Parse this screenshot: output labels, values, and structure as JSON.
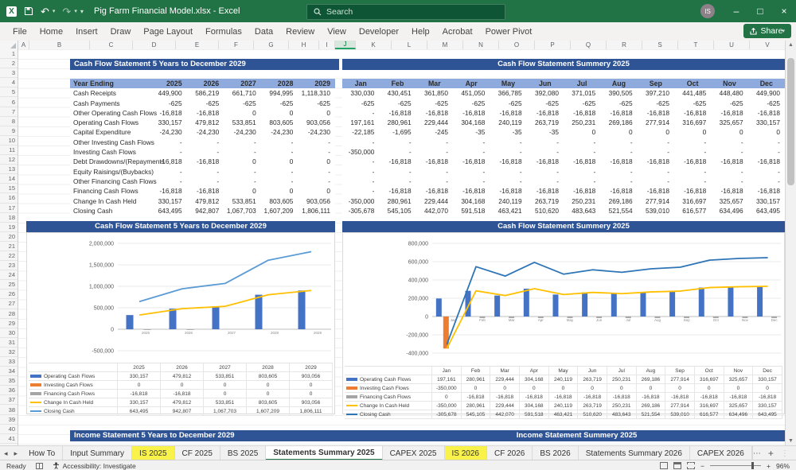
{
  "titlebar": {
    "title": "Pig Farm Financial Model.xlsx  -  Excel",
    "search_placeholder": "Search",
    "avatar_initials": "IS",
    "window_buttons": [
      "minimize",
      "restore",
      "close"
    ]
  },
  "ribbon": {
    "tabs": [
      "File",
      "Home",
      "Insert",
      "Draw",
      "Page Layout",
      "Formulas",
      "Data",
      "Review",
      "View",
      "Developer",
      "Help",
      "Acrobat",
      "Power Pivot"
    ],
    "share_label": "Share"
  },
  "sheet": {
    "col_letters": [
      "A",
      "B",
      "C",
      "D",
      "E",
      "F",
      "G",
      "H",
      "I",
      "J",
      "K",
      "L",
      "M",
      "N",
      "O",
      "P",
      "Q",
      "R",
      "S",
      "T",
      "U",
      "V"
    ],
    "selected_col": "J",
    "row_count": 41,
    "tables": {
      "annual": {
        "title": "Cash Flow Statement 5 Years to December 2029",
        "header": [
          "Year Ending",
          "2025",
          "2026",
          "2027",
          "2028",
          "2029"
        ],
        "rows": [
          [
            "Cash Receipts",
            "449,900",
            "586,219",
            "661,710",
            "994,995",
            "1,118,310"
          ],
          [
            "Cash Payments",
            "-625",
            "-625",
            "-625",
            "-625",
            "-625"
          ],
          [
            "Other Operating Cash Flows",
            "-16,818",
            "-16,818",
            "0",
            "0",
            "0"
          ],
          [
            "Operating Cash Flows",
            "330,157",
            "479,812",
            "533,851",
            "803,605",
            "903,056"
          ],
          [
            "Capital Expenditure",
            "-24,230",
            "-24,230",
            "-24,230",
            "-24,230",
            "-24,230"
          ],
          [
            "Other Investing Cash Flows",
            "-",
            "-",
            "-",
            "-",
            "-"
          ],
          [
            "Investing Cash Flows",
            "-",
            "-",
            "-",
            "-",
            "-"
          ],
          [
            "Debt Drawdowns/(Repayments",
            "-16,818",
            "-16,818",
            "0",
            "0",
            "0"
          ],
          [
            "Equity Raisings/(Buybacks)",
            "-",
            "-",
            "-",
            "-",
            "-"
          ],
          [
            "Other Financing Cash Flows",
            "-",
            "-",
            "-",
            "-",
            "-"
          ],
          [
            "Financing Cash Flows",
            "-16,818",
            "-16,818",
            "0",
            "0",
            "0"
          ],
          [
            "Change In Cash Held",
            "330,157",
            "479,812",
            "533,851",
            "803,605",
            "903,056"
          ],
          [
            "Closing Cash",
            "643,495",
            "942,807",
            "1,067,703",
            "1,607,209",
            "1,806,111"
          ]
        ]
      },
      "monthly": {
        "title": "Cash Flow Statement Summery 2025",
        "header": [
          "Jan",
          "Feb",
          "Mar",
          "Apr",
          "May",
          "Jun",
          "Jul",
          "Aug",
          "Sep",
          "Oct",
          "Nov",
          "Dec"
        ],
        "rows": [
          [
            "330,030",
            "430,451",
            "361,850",
            "451,050",
            "366,785",
            "392,080",
            "371,015",
            "390,505",
            "397,210",
            "441,485",
            "448,480",
            "449,900"
          ],
          [
            "-625",
            "-625",
            "-625",
            "-625",
            "-625",
            "-625",
            "-625",
            "-625",
            "-625",
            "-625",
            "-625",
            "-625"
          ],
          [
            "-",
            "-16,818",
            "-16,818",
            "-16,818",
            "-16,818",
            "-16,818",
            "-16,818",
            "-16,818",
            "-16,818",
            "-16,818",
            "-16,818",
            "-16,818"
          ],
          [
            "197,161",
            "280,961",
            "229,444",
            "304,168",
            "240,119",
            "263,719",
            "250,231",
            "269,186",
            "277,914",
            "316,697",
            "325,657",
            "330,157"
          ],
          [
            "-22,185",
            "-1,695",
            "-245",
            "-35",
            "-35",
            "-35",
            "0",
            "0",
            "0",
            "0",
            "0",
            "0"
          ],
          [
            "-",
            "-",
            "-",
            "-",
            "-",
            "-",
            "-",
            "-",
            "-",
            "-",
            "-",
            "-"
          ],
          [
            "-350,000",
            "-",
            "-",
            "-",
            "-",
            "-",
            "-",
            "-",
            "-",
            "-",
            "-",
            "-"
          ],
          [
            "-",
            "-16,818",
            "-16,818",
            "-16,818",
            "-16,818",
            "-16,818",
            "-16,818",
            "-16,818",
            "-16,818",
            "-16,818",
            "-16,818",
            "-16,818"
          ],
          [
            "-",
            "-",
            "-",
            "-",
            "-",
            "-",
            "-",
            "-",
            "-",
            "-",
            "-",
            "-"
          ],
          [
            "-",
            "-",
            "-",
            "-",
            "-",
            "-",
            "-",
            "-",
            "-",
            "-",
            "-",
            "-"
          ],
          [
            "-",
            "-16,818",
            "-16,818",
            "-16,818",
            "-16,818",
            "-16,818",
            "-16,818",
            "-16,818",
            "-16,818",
            "-16,818",
            "-16,818",
            "-16,818"
          ],
          [
            "-350,000",
            "280,961",
            "229,444",
            "304,168",
            "240,119",
            "263,719",
            "250,231",
            "269,186",
            "277,914",
            "316,697",
            "325,657",
            "330,157"
          ],
          [
            "-305,678",
            "545,105",
            "442,070",
            "591,518",
            "463,421",
            "510,620",
            "483,643",
            "521,554",
            "539,010",
            "616,577",
            "634,496",
            "643,495"
          ]
        ]
      }
    },
    "bottom_bands": {
      "left": "Income Statement 5 Years to December 2029",
      "right": "Income Statement Summery 2025"
    }
  },
  "chart_data": [
    {
      "type": "bar",
      "title": "Cash Flow Statement 5 Years to December 2029",
      "categories": [
        "2025",
        "2026",
        "2027",
        "2028",
        "2029"
      ],
      "ylim": [
        -500000,
        2000000
      ],
      "tick_step": 500000,
      "grid": true,
      "legend_position": "data-table-below",
      "series": [
        {
          "name": "Operating Cash Flows",
          "kind": "bar",
          "color": "#4472C4",
          "values": [
            330157,
            479812,
            533851,
            803605,
            903056
          ]
        },
        {
          "name": "Investing Cash Flows",
          "kind": "bar",
          "color": "#ED7D31",
          "values": [
            0,
            0,
            0,
            0,
            0
          ]
        },
        {
          "name": "Financing Cash Flows",
          "kind": "bar",
          "color": "#A5A5A5",
          "values": [
            -16818,
            -16818,
            0,
            0,
            0
          ]
        },
        {
          "name": "Change In Cash Held",
          "kind": "line",
          "color": "#FFC000",
          "values": [
            330157,
            479812,
            533851,
            803605,
            903056
          ]
        },
        {
          "name": "Closing Cash",
          "kind": "line",
          "color": "#5B9BD5",
          "values": [
            643495,
            942807,
            1067703,
            1607209,
            1806111
          ]
        }
      ]
    },
    {
      "type": "bar",
      "title": "Cash Flow Statement Summery 2025",
      "categories": [
        "Jan",
        "Feb",
        "Mar",
        "Apr",
        "May",
        "Jun",
        "Jul",
        "Aug",
        "Sep",
        "Oct",
        "Nov",
        "Dec"
      ],
      "ylim": [
        -400000,
        800000
      ],
      "tick_step": 200000,
      "grid": true,
      "legend_position": "data-table-below",
      "series": [
        {
          "name": "Operating Cash Flows",
          "kind": "bar",
          "color": "#4472C4",
          "values": [
            197161,
            280961,
            229444,
            304168,
            240119,
            263719,
            250231,
            269186,
            277914,
            316697,
            325657,
            330157
          ]
        },
        {
          "name": "Investing Cash Flows",
          "kind": "bar",
          "color": "#ED7D31",
          "values": [
            -350000,
            0,
            0,
            0,
            0,
            0,
            0,
            0,
            0,
            0,
            0,
            0
          ]
        },
        {
          "name": "Financing Cash Flows",
          "kind": "bar",
          "color": "#A5A5A5",
          "values": [
            0,
            -16818,
            -16818,
            -16818,
            -16818,
            -16818,
            -16818,
            -16818,
            -16818,
            -16818,
            -16818,
            -16818
          ]
        },
        {
          "name": "Change In Cash Held",
          "kind": "line",
          "color": "#FFC000",
          "values": [
            -350000,
            280961,
            229444,
            304168,
            240119,
            263719,
            250231,
            269186,
            277914,
            316697,
            325657,
            330157
          ]
        },
        {
          "name": "Closing Cash",
          "kind": "line",
          "color": "#2E75B6",
          "values": [
            -305678,
            545105,
            442070,
            591518,
            463421,
            510620,
            483643,
            521554,
            539010,
            616577,
            634496,
            643495
          ]
        }
      ]
    }
  ],
  "sheet_tabs": {
    "items": [
      {
        "label": "How To",
        "state": "normal"
      },
      {
        "label": "Input Summary",
        "state": "normal"
      },
      {
        "label": "IS 2025",
        "state": "highlight"
      },
      {
        "label": "CF 2025",
        "state": "normal"
      },
      {
        "label": "BS 2025",
        "state": "normal"
      },
      {
        "label": "Statements Summary 2025",
        "state": "active"
      },
      {
        "label": "CAPEX 2025",
        "state": "normal"
      },
      {
        "label": "IS 2026",
        "state": "highlight"
      },
      {
        "label": "CF 2026",
        "state": "normal"
      },
      {
        "label": "BS 2026",
        "state": "normal"
      },
      {
        "label": "Statements Summary 2026",
        "state": "normal"
      },
      {
        "label": "CAPEX 2026",
        "state": "normal"
      }
    ]
  },
  "status_bar": {
    "ready": "Ready",
    "accessibility": "Accessibility: Investigate",
    "zoom": "96%"
  },
  "colors": {
    "excel_green": "#217346",
    "band_navy": "#2F5496",
    "header_blue": "#8FAADC",
    "header_text_navy": "#1F3864",
    "tab_highlight_yellow": "#F9F24B",
    "series_operating": "#4472C4",
    "series_investing": "#ED7D31",
    "series_financing": "#A5A5A5",
    "series_change": "#FFC000",
    "series_closing": "#5B9BD5"
  }
}
